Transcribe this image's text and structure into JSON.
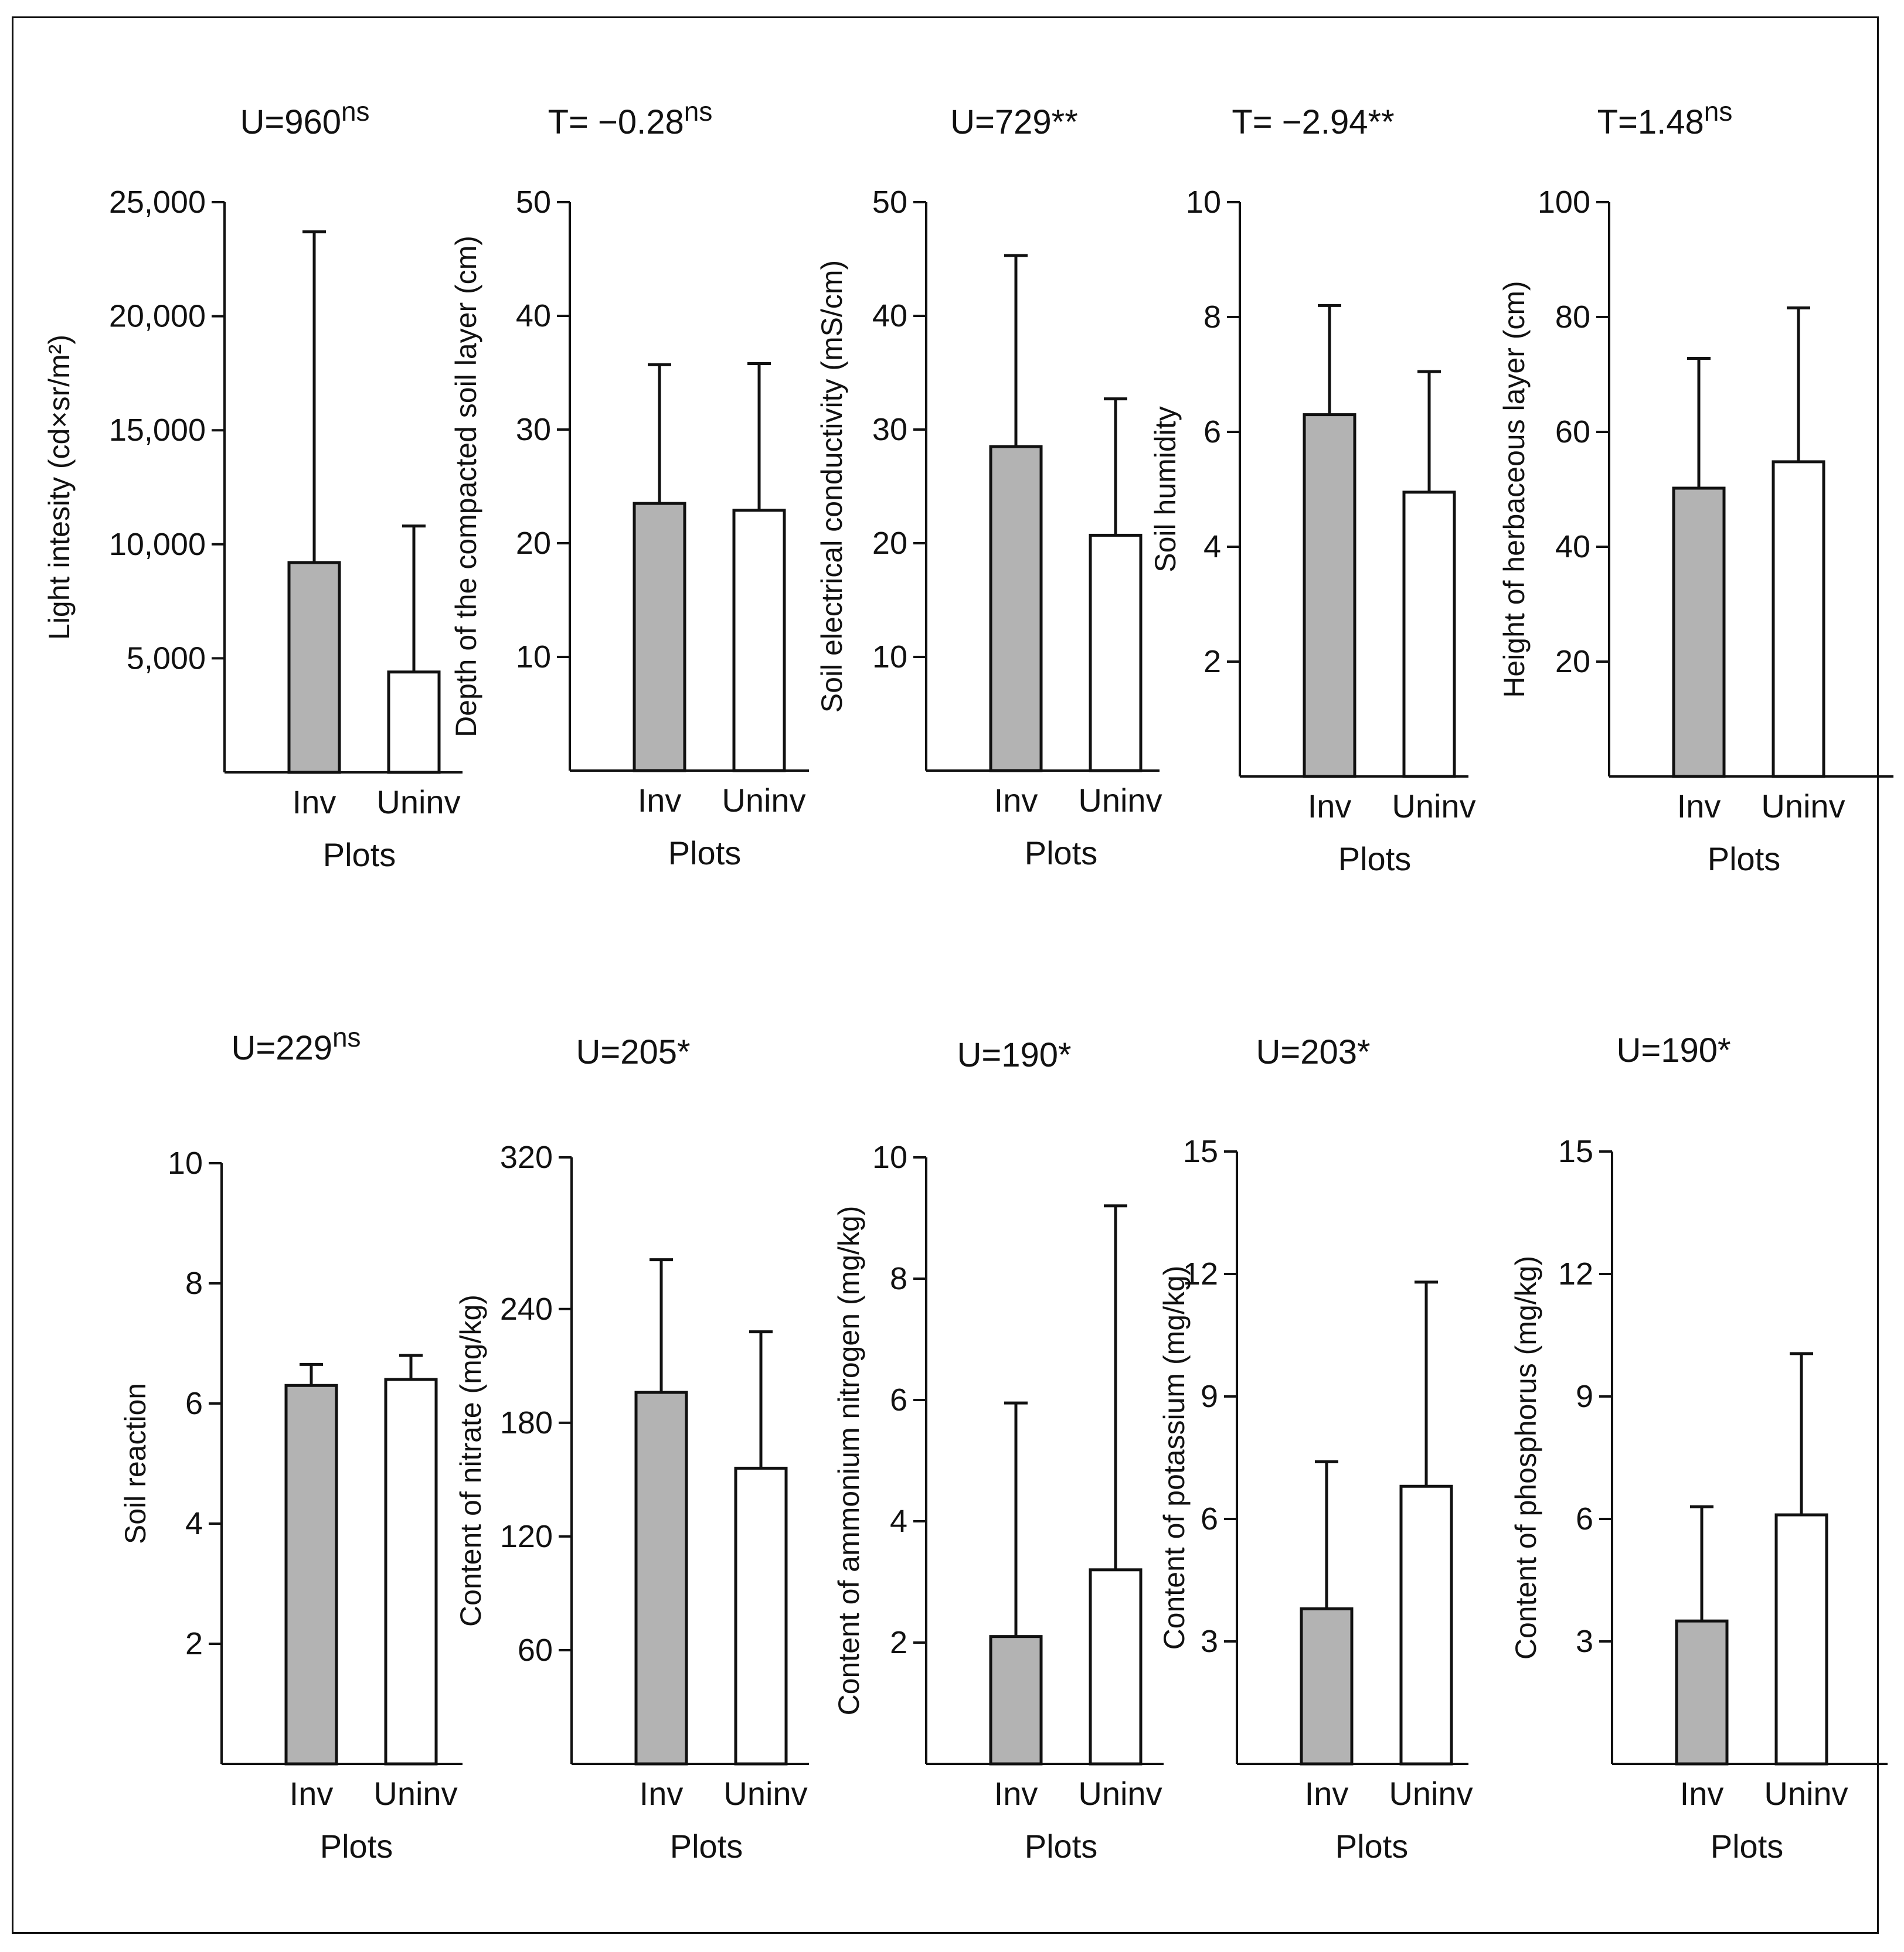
{
  "colors": {
    "inv": "#b3b3b3",
    "uninv": "#ffffff",
    "stroke": "#111111"
  },
  "chart_data": [
    {
      "type": "bar",
      "stat": "U=960",
      "sig": "ns",
      "ylabel": "Light intesity (cd×sr/m²)",
      "xlabel": "Plots",
      "categories": [
        "Inv",
        "Uninv"
      ],
      "values": [
        9200,
        4400
      ],
      "errors": [
        23700,
        10800
      ],
      "ylim": [
        0,
        25000
      ],
      "yticks": [
        5000,
        10000,
        15000,
        20000,
        25000
      ],
      "ytick_labels": [
        "5,000",
        "10,000",
        "15,000",
        "20,000",
        "25,000"
      ]
    },
    {
      "type": "bar",
      "stat": "T= −0.28",
      "sig": "ns",
      "ylabel": "Depth of the compacted soil layer (cm)",
      "xlabel": "Plots",
      "categories": [
        "Inv",
        "Uninv"
      ],
      "values": [
        23.5,
        22.9
      ],
      "errors": [
        35.7,
        35.8
      ],
      "ylim": [
        0,
        50
      ],
      "yticks": [
        10,
        20,
        30,
        40,
        50
      ],
      "ytick_labels": [
        "10",
        "20",
        "30",
        "40",
        "50"
      ]
    },
    {
      "type": "bar",
      "stat": "U=729**",
      "sig": "",
      "ylabel": "Soil electrical conductivity (mS/cm)",
      "xlabel": "Plots",
      "categories": [
        "Inv",
        "Uninv"
      ],
      "values": [
        28.5,
        20.7
      ],
      "errors": [
        45.3,
        32.7
      ],
      "ylim": [
        0,
        50
      ],
      "yticks": [
        10,
        20,
        30,
        40,
        50
      ],
      "ytick_labels": [
        "10",
        "20",
        "30",
        "40",
        "50"
      ]
    },
    {
      "type": "bar",
      "stat": "T= −2.94**",
      "sig": "",
      "ylabel": "Soil humidity",
      "xlabel": "Plots",
      "categories": [
        "Inv",
        "Uninv"
      ],
      "values": [
        6.3,
        4.95
      ],
      "errors": [
        8.2,
        7.05
      ],
      "ylim": [
        0,
        10
      ],
      "yticks": [
        2,
        4,
        6,
        8,
        10
      ],
      "ytick_labels": [
        "2",
        "4",
        "6",
        "8",
        "10"
      ]
    },
    {
      "type": "bar",
      "stat": "T=1.48",
      "sig": "ns",
      "ylabel": "Height of herbaceous layer (cm)",
      "xlabel": "Plots",
      "categories": [
        "Inv",
        "Uninv"
      ],
      "values": [
        50.2,
        54.8
      ],
      "errors": [
        72.8,
        81.6
      ],
      "ylim": [
        0,
        100
      ],
      "yticks": [
        20,
        40,
        60,
        80,
        100
      ],
      "ytick_labels": [
        "20",
        "40",
        "60",
        "80",
        "100"
      ]
    },
    {
      "type": "bar",
      "stat": "U=229",
      "sig": "ns",
      "ylabel": "Soil reaction",
      "xlabel": "Plots",
      "categories": [
        "Inv",
        "Uninv"
      ],
      "values": [
        6.3,
        6.4
      ],
      "errors": [
        6.65,
        6.8
      ],
      "ylim": [
        0,
        10
      ],
      "yticks": [
        2,
        4,
        6,
        8,
        10
      ],
      "ytick_labels": [
        "2",
        "4",
        "6",
        "8",
        "10"
      ]
    },
    {
      "type": "bar",
      "stat": "U=205*",
      "sig": "",
      "ylabel": "Content of nitrate (mg/kg)",
      "xlabel": "Plots",
      "categories": [
        "Inv",
        "Uninv"
      ],
      "values": [
        196,
        156
      ],
      "errors": [
        266,
        228
      ],
      "ylim": [
        0,
        320
      ],
      "yticks": [
        60,
        120,
        180,
        240,
        320
      ],
      "ytick_labels": [
        "60",
        "120",
        "180",
        "240",
        "320"
      ]
    },
    {
      "type": "bar",
      "stat": "U=190*",
      "sig": "",
      "ylabel": "Content of ammonium nitrogen (mg/kg)",
      "xlabel": "Plots",
      "categories": [
        "Inv",
        "Uninv"
      ],
      "values": [
        2.1,
        3.2
      ],
      "errors": [
        5.95,
        9.2
      ],
      "ylim": [
        0,
        10
      ],
      "yticks": [
        2,
        4,
        6,
        8,
        10
      ],
      "ytick_labels": [
        "2",
        "4",
        "6",
        "8",
        "10"
      ]
    },
    {
      "type": "bar",
      "stat": "U=203*",
      "sig": "",
      "ylabel": "Content of potassium (mg/kg)",
      "xlabel": "Plots",
      "categories": [
        "Inv",
        "Uninv"
      ],
      "values": [
        3.8,
        6.8
      ],
      "errors": [
        7.4,
        11.8
      ],
      "ylim": [
        0,
        15
      ],
      "yticks": [
        3,
        6,
        9,
        12,
        15
      ],
      "ytick_labels": [
        "3",
        "6",
        "9",
        "12",
        "15"
      ]
    },
    {
      "type": "bar",
      "stat": "U=190*",
      "sig": "",
      "ylabel": "Content of phosphorus (mg/kg)",
      "xlabel": "Plots",
      "categories": [
        "Inv",
        "Uninv"
      ],
      "values": [
        3.5,
        6.1
      ],
      "errors": [
        6.3,
        10.05
      ],
      "ylim": [
        0,
        15
      ],
      "yticks": [
        3,
        6,
        9,
        12,
        15
      ],
      "ytick_labels": [
        "3",
        "6",
        "9",
        "12",
        "15"
      ]
    }
  ]
}
